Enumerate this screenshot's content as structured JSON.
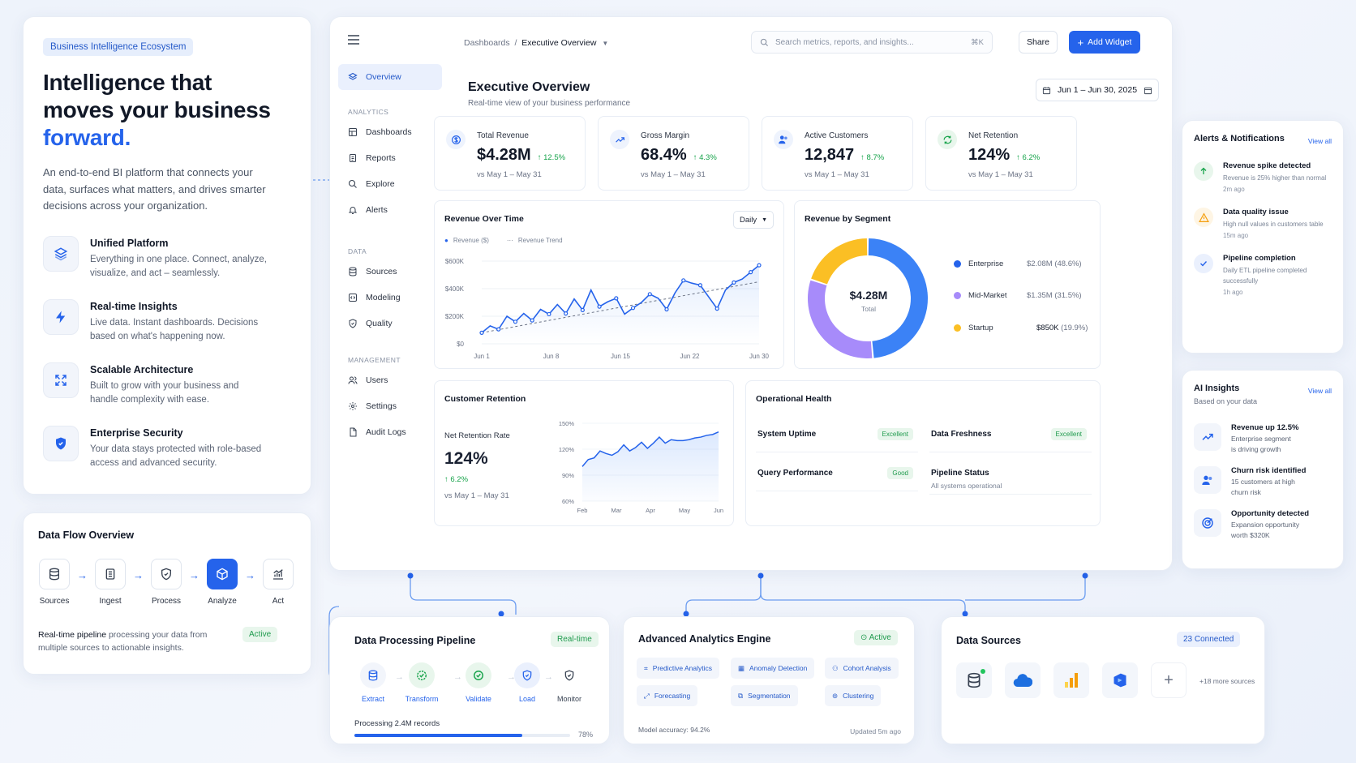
{
  "hero": {
    "tag": "Business Intelligence Ecosystem",
    "title_line1": "Intelligence that",
    "title_line2": "moves your business",
    "title_line3": "forward.",
    "description": "An end-to-end BI platform that connects your data, surfaces what matters, and drives smarter decisions across your organization.",
    "features": [
      {
        "title": "Unified Platform",
        "desc": "Everything in one place. Connect, analyze, visualize, and act – seamlessly.",
        "icon": "layers-icon"
      },
      {
        "title": "Real-time Insights",
        "desc": "Live data. Instant dashboards. Decisions based on what's happening now.",
        "icon": "bolt-icon"
      },
      {
        "title": "Scalable Architecture",
        "desc": "Built to grow with your business and handle complexity with ease.",
        "icon": "expand-icon"
      },
      {
        "title": "Enterprise Security",
        "desc": "Your data stays protected with role-based access and advanced security.",
        "icon": "shield-icon"
      }
    ]
  },
  "flow": {
    "title": "Data Flow Overview",
    "steps": [
      "Sources",
      "Ingest",
      "Process",
      "Analyze",
      "Act"
    ],
    "desc_bold": "Real-time pipeline",
    "desc_rest": " processing your data from multiple sources to actionable insights.",
    "status": "Active"
  },
  "sidebar": {
    "overview": "Overview",
    "sections": [
      {
        "label": "ANALYTICS",
        "items": [
          "Dashboards",
          "Reports",
          "Explore",
          "Alerts"
        ]
      },
      {
        "label": "DATA",
        "items": [
          "Sources",
          "Modeling",
          "Quality"
        ]
      },
      {
        "label": "MANAGEMENT",
        "items": [
          "Users",
          "Settings",
          "Audit Logs"
        ]
      }
    ]
  },
  "topbar": {
    "crumb_root": "Dashboards",
    "crumb_sep": "/",
    "crumb_current": "Executive Overview",
    "search_placeholder": "Search metrics, reports, and insights...",
    "search_shortcut": "⌘K",
    "share": "Share",
    "add_widget": "Add Widget"
  },
  "page": {
    "title": "Executive Overview",
    "subtitle": "Real-time view of your business performance",
    "date_range": "Jun 1 – Jun 30, 2025"
  },
  "kpis": [
    {
      "label": "Total Revenue",
      "value": "$4.28M",
      "delta": "↑ 12.5%",
      "sub": "vs May 1 – May 31"
    },
    {
      "label": "Gross Margin",
      "value": "68.4%",
      "delta": "↑ 4.3%",
      "sub": "vs May 1 – May 31"
    },
    {
      "label": "Active Customers",
      "value": "12,847",
      "delta": "↑ 8.7%",
      "sub": "vs May 1 – May 31"
    },
    {
      "label": "Net Retention",
      "value": "124%",
      "delta": "↑ 6.2%",
      "sub": "vs May 1 – May 31"
    }
  ],
  "revenue_panel": {
    "title": "Revenue Over Time",
    "granularity": "Daily",
    "legend_revenue": "Revenue ($)",
    "legend_trend": "Revenue Trend"
  },
  "segment_panel": {
    "title": "Revenue by Segment",
    "center_value": "$4.28M",
    "center_label": "Total"
  },
  "retention_panel": {
    "title": "Customer Retention",
    "metric_label": "Net Retention Rate",
    "value": "124%",
    "delta": "↑ 6.2%",
    "sub": "vs May 1 – May 31"
  },
  "health_panel": {
    "title": "Operational Health",
    "items": [
      {
        "name": "System Uptime",
        "status": "Excellent",
        "sub": ""
      },
      {
        "name": "Data Freshness",
        "status": "Excellent",
        "sub": ""
      },
      {
        "name": "Query Performance",
        "status": "Good",
        "sub": ""
      },
      {
        "name": "Pipeline Status",
        "status": "",
        "sub": "All systems operational"
      }
    ]
  },
  "alerts": {
    "title": "Alerts & Notifications",
    "view_all": "View all",
    "items": [
      {
        "title": "Revenue spike detected",
        "desc": "Revenue is 25% higher than normal",
        "time": "2m ago",
        "color": "#16a34a"
      },
      {
        "title": "Data quality issue",
        "desc": "High null values in customers table",
        "time": "15m ago",
        "color": "#f59e0b"
      },
      {
        "title": "Pipeline completion",
        "desc": "Daily ETL pipeline completed successfully",
        "time": "1h ago",
        "color": "#2563eb"
      }
    ]
  },
  "ai": {
    "title": "AI Insights",
    "subtitle": "Based on your data",
    "view_all": "View all",
    "items": [
      {
        "title": "Revenue up 12.5%",
        "line1": "Enterprise segment",
        "line2": "is driving growth"
      },
      {
        "title": "Churn risk identified",
        "line1": "15 customers at high",
        "line2": "churn risk"
      },
      {
        "title": "Opportunity detected",
        "line1": "Expansion opportunity",
        "line2": "worth $320K"
      }
    ]
  },
  "pipeline": {
    "title": "Data Processing Pipeline",
    "badge": "Real-time",
    "steps": [
      "Extract",
      "Transform",
      "Validate",
      "Load",
      "Monitor"
    ],
    "processing": "Processing 2.4M records",
    "percent_label": "78%",
    "progress": 0.78
  },
  "engine": {
    "title": "Advanced Analytics Engine",
    "badge": "Active",
    "chips": [
      "Predictive Analytics",
      "Anomaly Detection",
      "Cohort Analysis",
      "Forecasting",
      "Segmentation",
      "Clustering"
    ],
    "accuracy": "Model accuracy: 94.2%",
    "updated": "Updated 5m ago"
  },
  "sources": {
    "title": "Data Sources",
    "badge": "23 Connected",
    "more": "+18 more sources",
    "icons": [
      "database-icon",
      "cloud-icon",
      "bar-chart-icon",
      "azure-icon",
      "plus-icon"
    ]
  },
  "chart_data": [
    {
      "type": "line",
      "x_ticks": [
        "Jun 1",
        "Jun 8",
        "Jun 15",
        "Jun 22",
        "Jun 30"
      ],
      "y_ticks": [
        "$0",
        "$200K",
        "$400K",
        "$600K"
      ],
      "ylim": [
        0,
        600
      ],
      "series": [
        {
          "name": "Revenue ($)",
          "values": [
            80,
            130,
            105,
            200,
            160,
            220,
            170,
            250,
            215,
            285,
            220,
            325,
            245,
            390,
            270,
            305,
            330,
            215,
            260,
            300,
            360,
            330,
            250,
            370,
            460,
            440,
            425,
            340,
            255,
            390,
            445,
            470,
            520,
            570
          ]
        },
        {
          "name": "Revenue Trend",
          "values": [
            80,
            450
          ]
        }
      ]
    },
    {
      "type": "pie",
      "categories": [
        "Enterprise",
        "Mid-Market",
        "Startup"
      ],
      "values": [
        48.6,
        31.5,
        19.9
      ],
      "value_labels": [
        "$2.08M",
        "$1.35M",
        "$850K"
      ],
      "pct_labels": [
        "(48.6%)",
        "(31.5%)",
        "(19.9%)"
      ],
      "colors": [
        "#3b82f6",
        "#a78bfa",
        "#fbbf24"
      ]
    },
    {
      "type": "area",
      "x_ticks": [
        "Feb",
        "Mar",
        "Apr",
        "May",
        "Jun"
      ],
      "y_ticks": [
        "60%",
        "90%",
        "120%",
        "150%"
      ],
      "ylim": [
        60,
        150
      ],
      "values": [
        100,
        108,
        110,
        118,
        115,
        113,
        117,
        125,
        118,
        122,
        128,
        121,
        127,
        134,
        127,
        131,
        130,
        130,
        131,
        133,
        134,
        136,
        137,
        140
      ]
    }
  ]
}
